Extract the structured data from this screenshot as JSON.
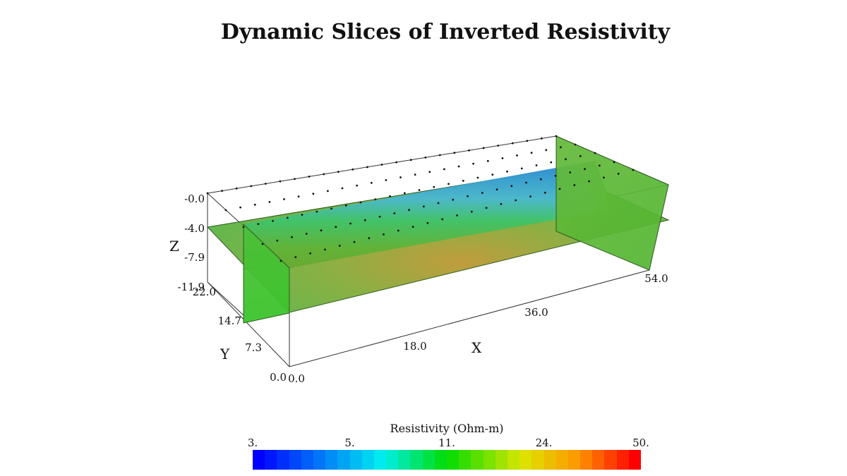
{
  "chart_data": {
    "type": "3d-slices",
    "title": "Dynamic Slices of Inverted Resistivity",
    "axes": {
      "x": {
        "label": "X",
        "ticks": [
          "0.0",
          "18.0",
          "36.0",
          "54.0"
        ],
        "range": [
          0,
          54
        ]
      },
      "y": {
        "label": "Y",
        "ticks": [
          "0.0",
          "7.3",
          "14.7",
          "22.0"
        ],
        "range": [
          0,
          22
        ]
      },
      "z": {
        "label": "Z",
        "ticks": [
          "-0.0",
          "-4.0",
          "-7.9",
          "-11.9"
        ],
        "range": [
          -11.9,
          0
        ]
      }
    },
    "colorbar": {
      "title": "Resistivity (Ohm-m)",
      "ticks": [
        "3.",
        "5.",
        "11.",
        "24.",
        "50."
      ],
      "range": [
        3,
        50
      ],
      "scale": "log"
    }
  },
  "colors": {
    "low": "#0000ff",
    "mid": "#00e000",
    "high": "#ff0000",
    "background_slice": "#3fbf2a"
  }
}
